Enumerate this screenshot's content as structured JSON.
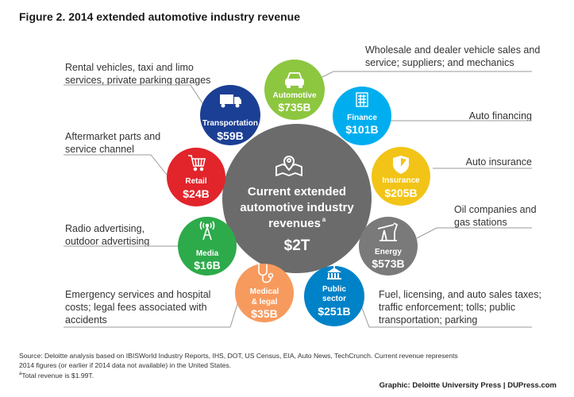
{
  "title": "Figure 2. 2014 extended automotive industry revenue",
  "center": {
    "line1": "Current extended",
    "line2": "automotive industry",
    "line3": "revenues",
    "sup": "a",
    "value": "$2T",
    "color": "#6b6b6b"
  },
  "segments": [
    {
      "key": "automotive",
      "label": "Automotive",
      "value": "$735B",
      "color": "#8dc63f",
      "icon": "car-icon",
      "desc": [
        "Wholesale and dealer vehicle sales and",
        "service; suppliers; and mechanics"
      ]
    },
    {
      "key": "finance",
      "label": "Finance",
      "value": "$101B",
      "color": "#00aeef",
      "icon": "calculator-icon",
      "desc": [
        "Auto financing"
      ]
    },
    {
      "key": "insurance",
      "label": "Insurance",
      "value": "$205B",
      "color": "#f2c417",
      "icon": "shield-icon",
      "desc": [
        "Auto insurance"
      ]
    },
    {
      "key": "energy",
      "label": "Energy",
      "value": "$573B",
      "color": "#7a7a7a",
      "icon": "oil-pump-icon",
      "desc": [
        "Oil companies and",
        "gas stations"
      ]
    },
    {
      "key": "public",
      "label": "Public",
      "label2": "sector",
      "value": "$251B",
      "color": "#0082c8",
      "icon": "capitol-icon",
      "desc": [
        "Fuel, licensing, and auto sales taxes;",
        "traffic enforcement; tolls; public",
        "transportation; parking"
      ]
    },
    {
      "key": "medical",
      "label": "Medical",
      "label2": "& legal",
      "value": "$35B",
      "color": "#f79a5d",
      "icon": "stethoscope-icon",
      "desc": [
        "Emergency services and hospital",
        "costs; legal fees associated with",
        "accidents"
      ]
    },
    {
      "key": "media",
      "label": "Media",
      "value": "$16B",
      "color": "#2daa4a",
      "icon": "antenna-icon",
      "desc": [
        "Radio advertising,",
        "outdoor advertising"
      ]
    },
    {
      "key": "retail",
      "label": "Retail",
      "value": "$24B",
      "color": "#e2242b",
      "icon": "cart-icon",
      "desc": [
        "Aftermarket parts and",
        "service channel"
      ]
    },
    {
      "key": "transportation",
      "label": "Transportation",
      "value": "$59B",
      "color": "#1b3f94",
      "icon": "truck-icon",
      "desc": [
        "Rental vehicles, taxi and limo",
        "services, private parking garages"
      ]
    }
  ],
  "footnote": {
    "line1": "Source: Deloitte analysis based on IBISWorld Industry Reports, IHS, DOT, US Census, EIA, Auto News, TechCrunch. Current revenue represents",
    "line2": "2014 figures (or earlier if 2014 data not available) in the United States.",
    "line3": "Total revenue is $1.99T.",
    "line3_sup": "a"
  },
  "credit": "Graphic: Deloitte University Press  |  DUPress.com"
}
